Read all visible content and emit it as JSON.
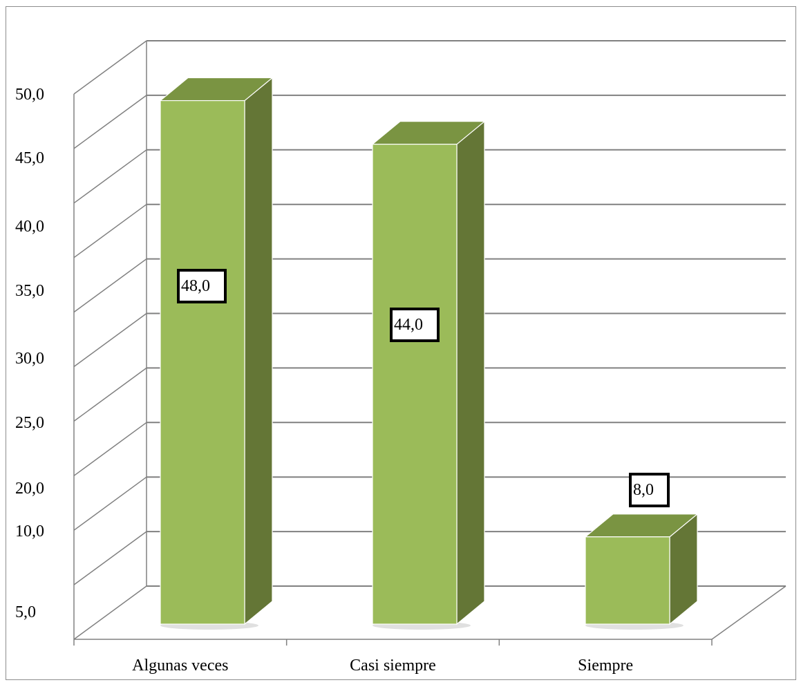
{
  "chart_data": {
    "type": "bar",
    "style": "3d-column",
    "categories": [
      "Algunas veces",
      "Casi siempre",
      "Siempre"
    ],
    "values": [
      48.0,
      44.0,
      8.0
    ],
    "value_labels": [
      "48,0",
      "44,0",
      "8,0"
    ],
    "y_tick_labels": [
      "5,0",
      "10,0",
      "20,0",
      "25,0",
      "30,0",
      "35,0",
      "40,0",
      "45,0",
      "50,0"
    ],
    "ylim": [
      0,
      50
    ],
    "grid": true,
    "legend": "none",
    "title": "",
    "xlabel": "",
    "ylabel": ""
  },
  "colors": {
    "bar_front": "#9bbb59",
    "bar_side": "#647636",
    "bar_top": "#7a9442",
    "grid": "#808080",
    "label_border": "#000000"
  }
}
